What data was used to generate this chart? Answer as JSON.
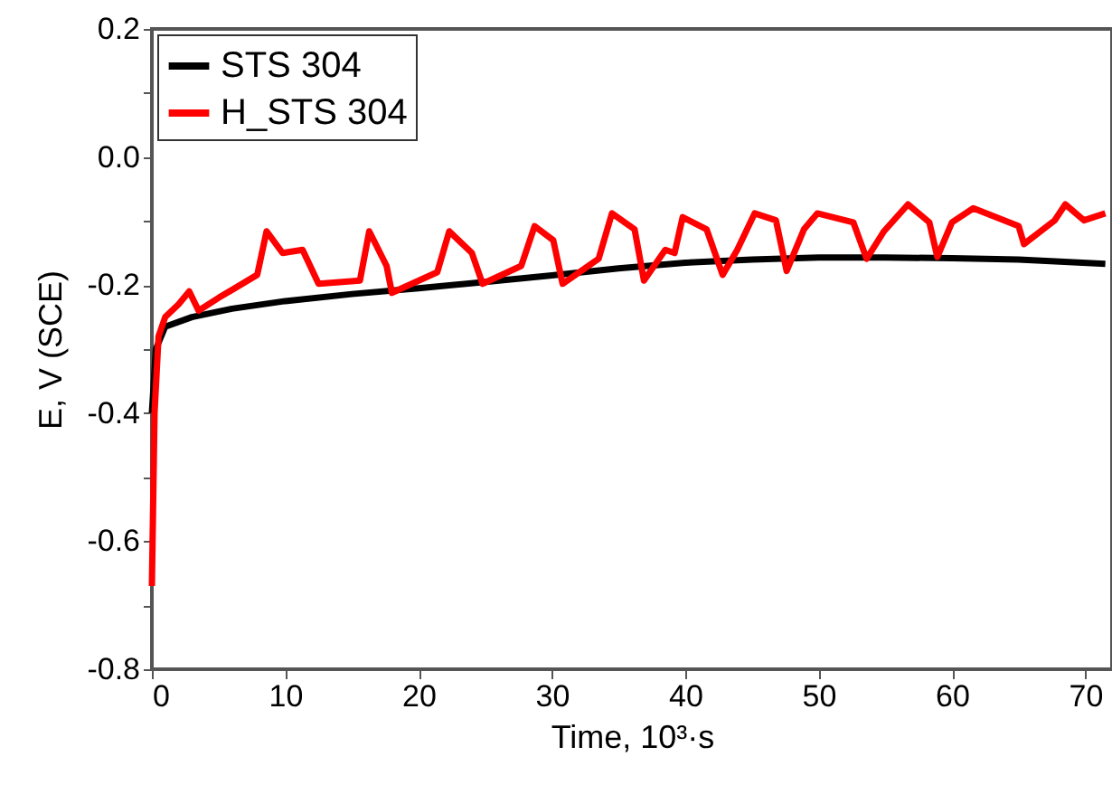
{
  "chart_data": {
    "type": "line",
    "xlabel": "Time, 10³·s",
    "ylabel": "E, V (SCE)",
    "xlim": [
      0,
      72
    ],
    "ylim": [
      -0.8,
      0.2
    ],
    "xticks": [
      0,
      10,
      20,
      30,
      40,
      50,
      60,
      70
    ],
    "yticks": [
      {
        "value": -0.8,
        "label": "-0.8"
      },
      {
        "value": -0.7,
        "label": null
      },
      {
        "value": -0.6,
        "label": "-0.6"
      },
      {
        "value": -0.5,
        "label": null
      },
      {
        "value": -0.4,
        "label": "-0.4"
      },
      {
        "value": -0.3,
        "label": null
      },
      {
        "value": -0.2,
        "label": "-0.2"
      },
      {
        "value": -0.1,
        "label": null
      },
      {
        "value": 0.0,
        "label": "0.0"
      },
      {
        "value": 0.1,
        "label": null
      },
      {
        "value": 0.2,
        "label": "0.2"
      }
    ],
    "grid": false,
    "legend": "top left",
    "line_style": "solid",
    "marker": "none",
    "series": [
      {
        "name": "STS 304",
        "color": "#000000",
        "x": [
          0,
          0.3,
          1,
          3,
          6,
          10,
          15,
          20,
          25,
          30,
          35,
          40,
          45,
          50,
          55,
          60,
          65,
          71.5
        ],
        "values": [
          -0.4,
          -0.3,
          -0.265,
          -0.25,
          -0.237,
          -0.225,
          -0.214,
          -0.205,
          -0.195,
          -0.185,
          -0.174,
          -0.165,
          -0.16,
          -0.157,
          -0.157,
          -0.158,
          -0.16,
          -0.167
        ]
      },
      {
        "name": "H_STS 304",
        "color": "#ff0000",
        "x": [
          0,
          0.2,
          0.5,
          1,
          2,
          2.8,
          3.5,
          5,
          7.9,
          8.6,
          9.8,
          11.3,
          12.5,
          15.6,
          16.3,
          17.6,
          18,
          21.4,
          22.3,
          24,
          24.8,
          27.7,
          28.7,
          30.1,
          30.8,
          33.5,
          34.5,
          36.2,
          36.9,
          38.5,
          39.2,
          39.8,
          41.6,
          42.8,
          43.9,
          45.2,
          46.8,
          47.6,
          48.9,
          49.9,
          52.6,
          53.6,
          54.9,
          56.7,
          58.3,
          58.9,
          60,
          61.6,
          65,
          65.4,
          67.7,
          68.5,
          69.9,
          71.5
        ],
        "values": [
          -0.67,
          -0.4,
          -0.28,
          -0.25,
          -0.23,
          -0.21,
          -0.24,
          -0.22,
          -0.184,
          -0.116,
          -0.15,
          -0.145,
          -0.198,
          -0.193,
          -0.116,
          -0.17,
          -0.212,
          -0.18,
          -0.116,
          -0.15,
          -0.198,
          -0.17,
          -0.108,
          -0.13,
          -0.198,
          -0.159,
          -0.088,
          -0.113,
          -0.193,
          -0.145,
          -0.15,
          -0.094,
          -0.113,
          -0.184,
          -0.145,
          -0.088,
          -0.099,
          -0.178,
          -0.113,
          -0.088,
          -0.102,
          -0.159,
          -0.116,
          -0.074,
          -0.102,
          -0.156,
          -0.102,
          -0.08,
          -0.108,
          -0.136,
          -0.099,
          -0.074,
          -0.099,
          -0.088
        ]
      }
    ]
  }
}
